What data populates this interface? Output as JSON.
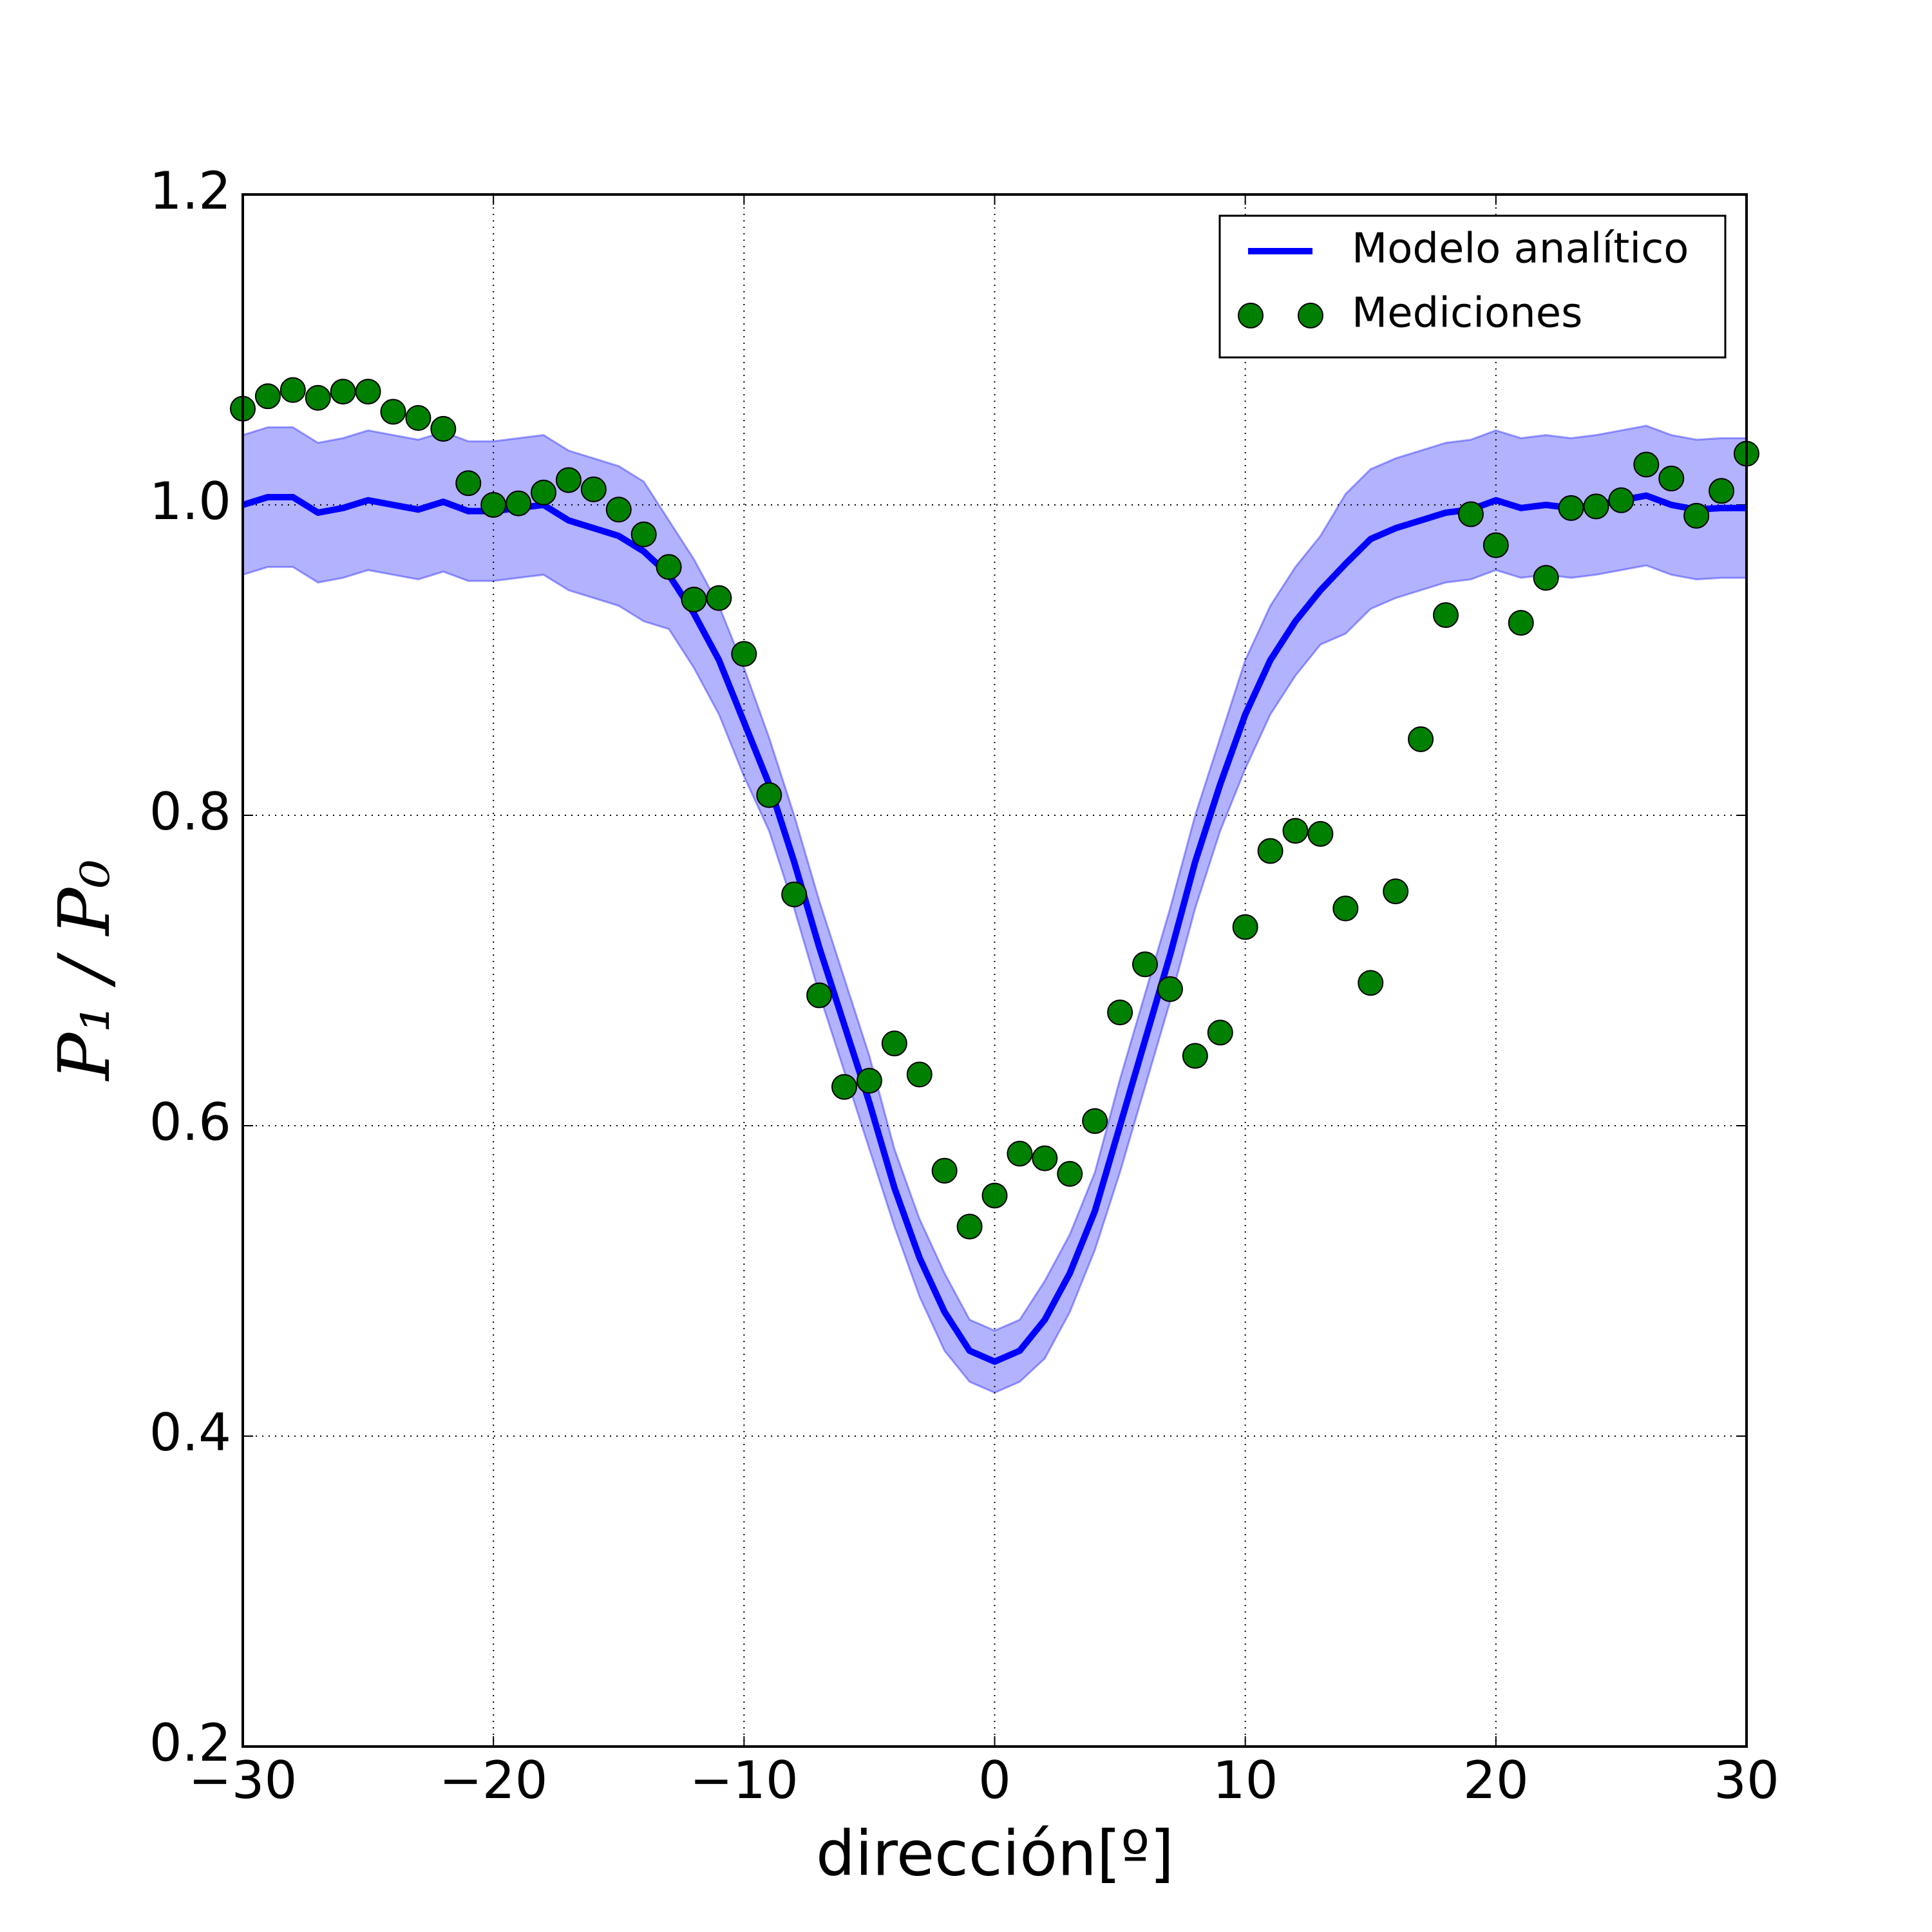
{
  "chart_data": {
    "type": "line",
    "xlabel": "dirección[º]",
    "ylabel": "P₁ / P₀",
    "x": [
      -30,
      -29,
      -28,
      -27,
      -26,
      -25,
      -24,
      -23,
      -22,
      -21,
      -20,
      -19,
      -18,
      -17,
      -16,
      -15,
      -14,
      -13,
      -12,
      -11,
      -10,
      -9,
      -8,
      -7,
      -6,
      -5,
      -4,
      -3,
      -2,
      -1,
      0,
      1,
      2,
      3,
      4,
      5,
      6,
      7,
      8,
      9,
      10,
      11,
      12,
      13,
      14,
      15,
      16,
      17,
      18,
      19,
      20,
      21,
      22,
      23,
      24,
      25,
      26,
      27,
      28,
      29,
      30
    ],
    "series": [
      {
        "name": "Modelo analítico",
        "color": "#0000ff",
        "values": [
          1.0,
          1.005,
          1.005,
          0.995,
          0.998,
          1.003,
          1.0,
          0.997,
          1.002,
          0.996,
          0.996,
          0.998,
          1.0,
          0.99,
          0.985,
          0.98,
          0.97,
          0.955,
          0.93,
          0.9,
          0.86,
          0.82,
          0.77,
          0.715,
          0.665,
          0.615,
          0.56,
          0.515,
          0.48,
          0.455,
          0.448,
          0.455,
          0.475,
          0.505,
          0.545,
          0.6,
          0.655,
          0.71,
          0.77,
          0.82,
          0.865,
          0.9,
          0.925,
          0.945,
          0.962,
          0.978,
          0.985,
          0.99,
          0.995,
          0.997,
          1.003,
          0.998,
          1.0,
          0.998,
          1.0,
          1.003,
          1.006,
          1.0,
          0.997,
          0.998,
          0.998
        ]
      },
      {
        "name": "Mediciones",
        "type": "scatter",
        "color": "#008000",
        "values": [
          1.062,
          1.07,
          1.074,
          1.069,
          1.073,
          1.073,
          1.06,
          1.056,
          1.049,
          1.014,
          1.0,
          1.001,
          1.008,
          1.016,
          1.01,
          0.997,
          0.981,
          0.96,
          0.939,
          0.94,
          0.904,
          0.813,
          0.749,
          0.684,
          0.625,
          0.629,
          0.653,
          0.633,
          0.571,
          0.535,
          0.555,
          0.582,
          0.579,
          0.569,
          0.603,
          0.673,
          0.704,
          0.688,
          0.645,
          0.66,
          0.728,
          0.777,
          0.79,
          0.788,
          0.74,
          0.692,
          0.751,
          0.849,
          0.929,
          0.994,
          0.974,
          0.924,
          0.953,
          0.998,
          0.999,
          1.003,
          1.026,
          1.017,
          0.993,
          1.009,
          1.033
        ]
      }
    ],
    "band": {
      "color": "#0000ff",
      "upper": [
        1.045,
        1.05,
        1.05,
        1.04,
        1.043,
        1.048,
        1.045,
        1.042,
        1.047,
        1.041,
        1.041,
        1.043,
        1.045,
        1.035,
        1.03,
        1.025,
        1.015,
        0.99,
        0.965,
        0.935,
        0.895,
        0.85,
        0.8,
        0.745,
        0.695,
        0.645,
        0.585,
        0.54,
        0.505,
        0.475,
        0.468,
        0.475,
        0.5,
        0.53,
        0.57,
        0.63,
        0.685,
        0.74,
        0.8,
        0.85,
        0.9,
        0.935,
        0.96,
        0.98,
        1.007,
        1.023,
        1.03,
        1.035,
        1.04,
        1.042,
        1.048,
        1.043,
        1.045,
        1.043,
        1.045,
        1.048,
        1.051,
        1.045,
        1.042,
        1.043,
        1.043
      ],
      "lower": [
        0.955,
        0.96,
        0.96,
        0.95,
        0.953,
        0.958,
        0.955,
        0.952,
        0.957,
        0.951,
        0.951,
        0.953,
        0.955,
        0.945,
        0.94,
        0.935,
        0.925,
        0.92,
        0.895,
        0.865,
        0.825,
        0.79,
        0.74,
        0.685,
        0.635,
        0.585,
        0.535,
        0.49,
        0.455,
        0.435,
        0.428,
        0.435,
        0.45,
        0.48,
        0.52,
        0.57,
        0.625,
        0.68,
        0.74,
        0.79,
        0.83,
        0.865,
        0.89,
        0.91,
        0.917,
        0.933,
        0.94,
        0.945,
        0.95,
        0.952,
        0.958,
        0.953,
        0.955,
        0.953,
        0.955,
        0.958,
        0.961,
        0.955,
        0.952,
        0.953,
        0.953
      ]
    },
    "xlim": [
      -30,
      30
    ],
    "ylim": [
      0.2,
      1.2
    ],
    "xticks": [
      {
        "value": -30,
        "label": "−30"
      },
      {
        "value": -20,
        "label": "−20"
      },
      {
        "value": -10,
        "label": "−10"
      },
      0,
      10,
      20,
      30
    ],
    "yticks": [
      0.2,
      0.4,
      0.6,
      0.8,
      {
        "value": 1,
        "label": "1.0"
      },
      1.2
    ],
    "grid": true,
    "legend": "upper right"
  }
}
